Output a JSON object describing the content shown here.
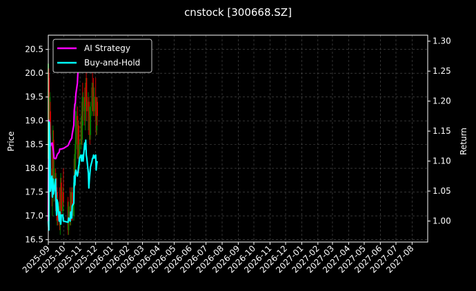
{
  "chart_data": {
    "type": "line",
    "title": "cnstock [300668.SZ]",
    "ylabel_left": "Price",
    "ylabel_right": "Return",
    "xlim": [
      "2025-09-01",
      "2027-08-31"
    ],
    "ylim_left": [
      16.45,
      20.8
    ],
    "ylim_right": [
      0.965,
      1.31
    ],
    "yticks_left": [
      16.5,
      17.0,
      17.5,
      18.0,
      18.5,
      19.0,
      19.5,
      20.0,
      20.5
    ],
    "yticks_right": [
      1.0,
      1.05,
      1.1,
      1.15,
      1.2,
      1.25,
      1.3
    ],
    "xticks": [
      "2025-09",
      "2025-10",
      "2025-11",
      "2025-12",
      "2026-01",
      "2026-02",
      "2026-03",
      "2026-04",
      "2026-05",
      "2026-06",
      "2026-07",
      "2026-08",
      "2026-09",
      "2026-10",
      "2026-11",
      "2026-12",
      "2027-01",
      "2027-02",
      "2027-03",
      "2027-04",
      "2027-05",
      "2027-06",
      "2027-07",
      "2027-08"
    ],
    "grid": true,
    "legend_position": "top-left",
    "colors": {
      "background": "#000000",
      "ai_strategy": "#ff00ff",
      "buy_and_hold": "#00ffff",
      "candle_up": "#008000",
      "candle_down": "#d00000",
      "grid": "#555555"
    },
    "candles": [
      {
        "date": "2025-09-01",
        "open": 18.2,
        "high": 20.4,
        "low": 18.0,
        "close": 20.2
      },
      {
        "date": "2025-09-02",
        "open": 20.0,
        "high": 20.1,
        "low": 18.8,
        "close": 19.0
      },
      {
        "date": "2025-09-03",
        "open": 19.3,
        "high": 19.9,
        "low": 18.4,
        "close": 18.5
      },
      {
        "date": "2025-09-04",
        "open": 18.6,
        "high": 19.6,
        "low": 17.5,
        "close": 19.5
      },
      {
        "date": "2025-09-05",
        "open": 19.2,
        "high": 19.4,
        "low": 17.9,
        "close": 18.0
      },
      {
        "date": "2025-09-08",
        "open": 18.0,
        "high": 18.5,
        "low": 17.2,
        "close": 17.4
      },
      {
        "date": "2025-09-09",
        "open": 17.5,
        "high": 18.0,
        "low": 17.0,
        "close": 17.8
      },
      {
        "date": "2025-09-10",
        "open": 17.8,
        "high": 18.9,
        "low": 17.5,
        "close": 18.8
      },
      {
        "date": "2025-09-11",
        "open": 18.6,
        "high": 18.8,
        "low": 17.6,
        "close": 17.8
      },
      {
        "date": "2025-09-12",
        "open": 17.8,
        "high": 18.2,
        "low": 17.3,
        "close": 18.0
      },
      {
        "date": "2025-09-15",
        "open": 17.9,
        "high": 18.0,
        "low": 17.1,
        "close": 17.3
      },
      {
        "date": "2025-09-16",
        "open": 17.3,
        "high": 17.9,
        "low": 17.0,
        "close": 17.7
      },
      {
        "date": "2025-09-17",
        "open": 17.6,
        "high": 17.8,
        "low": 16.9,
        "close": 17.0
      },
      {
        "date": "2025-09-18",
        "open": 17.0,
        "high": 17.4,
        "low": 16.8,
        "close": 17.3
      },
      {
        "date": "2025-09-19",
        "open": 17.2,
        "high": 17.5,
        "low": 16.8,
        "close": 16.9
      },
      {
        "date": "2025-09-22",
        "open": 16.9,
        "high": 17.3,
        "low": 16.8,
        "close": 17.2
      },
      {
        "date": "2025-09-23",
        "open": 17.1,
        "high": 17.6,
        "low": 16.7,
        "close": 16.8
      },
      {
        "date": "2025-09-24",
        "open": 16.8,
        "high": 17.2,
        "low": 16.6,
        "close": 17.1
      },
      {
        "date": "2025-09-25",
        "open": 17.1,
        "high": 17.9,
        "low": 17.0,
        "close": 17.8
      },
      {
        "date": "2025-09-26",
        "open": 17.7,
        "high": 17.8,
        "low": 17.0,
        "close": 17.1
      },
      {
        "date": "2025-09-29",
        "open": 17.1,
        "high": 17.6,
        "low": 16.9,
        "close": 17.5
      },
      {
        "date": "2025-09-30",
        "open": 17.5,
        "high": 18.0,
        "low": 17.2,
        "close": 17.3
      },
      {
        "date": "2025-10-09",
        "open": 17.3,
        "high": 17.4,
        "low": 16.6,
        "close": 16.7
      },
      {
        "date": "2025-10-10",
        "open": 16.7,
        "high": 17.3,
        "low": 16.6,
        "close": 17.2
      },
      {
        "date": "2025-10-13",
        "open": 17.2,
        "high": 17.6,
        "low": 16.8,
        "close": 16.9
      },
      {
        "date": "2025-10-14",
        "open": 16.9,
        "high": 17.5,
        "low": 16.8,
        "close": 17.3
      },
      {
        "date": "2025-10-15",
        "open": 17.3,
        "high": 17.5,
        "low": 16.9,
        "close": 17.1
      },
      {
        "date": "2025-10-16",
        "open": 17.1,
        "high": 17.6,
        "low": 17.0,
        "close": 17.5
      },
      {
        "date": "2025-10-17",
        "open": 17.5,
        "high": 17.6,
        "low": 16.9,
        "close": 17.0
      },
      {
        "date": "2025-10-20",
        "open": 17.0,
        "high": 17.8,
        "low": 16.9,
        "close": 17.7
      },
      {
        "date": "2025-10-21",
        "open": 17.7,
        "high": 18.3,
        "low": 17.5,
        "close": 18.2
      },
      {
        "date": "2025-10-22",
        "open": 18.2,
        "high": 18.4,
        "low": 17.6,
        "close": 17.8
      },
      {
        "date": "2025-10-23",
        "open": 17.8,
        "high": 18.6,
        "low": 17.7,
        "close": 18.5
      },
      {
        "date": "2025-10-24",
        "open": 18.5,
        "high": 19.4,
        "low": 18.3,
        "close": 19.2
      },
      {
        "date": "2025-10-27",
        "open": 19.1,
        "high": 19.3,
        "low": 18.2,
        "close": 18.4
      },
      {
        "date": "2025-10-28",
        "open": 18.4,
        "high": 19.0,
        "low": 18.2,
        "close": 18.9
      },
      {
        "date": "2025-10-29",
        "open": 18.9,
        "high": 19.0,
        "low": 18.3,
        "close": 18.5
      },
      {
        "date": "2025-10-30",
        "open": 18.5,
        "high": 18.9,
        "low": 17.9,
        "close": 18.1
      },
      {
        "date": "2025-10-31",
        "open": 18.1,
        "high": 18.6,
        "low": 18.0,
        "close": 18.5
      },
      {
        "date": "2025-11-03",
        "open": 18.5,
        "high": 19.1,
        "low": 18.4,
        "close": 19.0
      },
      {
        "date": "2025-11-04",
        "open": 19.0,
        "high": 19.2,
        "low": 18.5,
        "close": 18.6
      },
      {
        "date": "2025-11-05",
        "open": 18.6,
        "high": 19.5,
        "low": 18.5,
        "close": 19.4
      },
      {
        "date": "2025-11-06",
        "open": 19.4,
        "high": 19.8,
        "low": 19.0,
        "close": 19.2
      },
      {
        "date": "2025-11-07",
        "open": 19.2,
        "high": 19.6,
        "low": 18.9,
        "close": 19.5
      },
      {
        "date": "2025-11-10",
        "open": 19.5,
        "high": 19.7,
        "low": 18.9,
        "close": 19.0
      },
      {
        "date": "2025-11-11",
        "open": 19.0,
        "high": 19.4,
        "low": 18.8,
        "close": 19.3
      },
      {
        "date": "2025-11-12",
        "open": 19.3,
        "high": 19.9,
        "low": 19.2,
        "close": 19.8
      },
      {
        "date": "2025-11-13",
        "open": 19.8,
        "high": 20.3,
        "low": 19.4,
        "close": 19.5
      },
      {
        "date": "2025-11-14",
        "open": 19.5,
        "high": 19.9,
        "low": 19.0,
        "close": 19.2
      },
      {
        "date": "2025-11-17",
        "open": 19.2,
        "high": 19.6,
        "low": 18.8,
        "close": 19.4
      },
      {
        "date": "2025-11-18",
        "open": 19.4,
        "high": 19.5,
        "low": 18.7,
        "close": 18.9
      },
      {
        "date": "2025-11-19",
        "open": 18.9,
        "high": 19.3,
        "low": 18.6,
        "close": 19.1
      },
      {
        "date": "2025-11-20",
        "open": 19.1,
        "high": 19.2,
        "low": 18.5,
        "close": 18.7
      },
      {
        "date": "2025-11-21",
        "open": 18.7,
        "high": 19.4,
        "low": 18.6,
        "close": 19.3
      },
      {
        "date": "2025-11-24",
        "open": 19.3,
        "high": 19.8,
        "low": 19.1,
        "close": 19.7
      },
      {
        "date": "2025-11-25",
        "open": 19.7,
        "high": 20.1,
        "low": 19.2,
        "close": 19.4
      },
      {
        "date": "2025-11-26",
        "open": 19.4,
        "high": 19.8,
        "low": 19.2,
        "close": 19.6
      },
      {
        "date": "2025-11-27",
        "open": 19.6,
        "high": 19.9,
        "low": 19.1,
        "close": 19.2
      },
      {
        "date": "2025-11-28",
        "open": 19.2,
        "high": 19.7,
        "low": 19.1,
        "close": 19.5
      },
      {
        "date": "2025-12-01",
        "open": 19.5,
        "high": 19.9,
        "low": 19.0,
        "close": 19.1
      },
      {
        "date": "2025-12-02",
        "open": 19.1,
        "high": 19.3,
        "low": 18.7,
        "close": 18.8
      },
      {
        "date": "2025-12-03",
        "open": 18.8,
        "high": 19.5,
        "low": 18.7,
        "close": 19.4
      },
      {
        "date": "2025-12-04",
        "open": 19.4,
        "high": 19.5,
        "low": 18.9,
        "close": 19.1
      }
    ],
    "series": [
      {
        "name": "AI Strategy",
        "axis": "right",
        "points": [
          [
            "2025-09-01",
            1.0
          ],
          [
            "2025-09-02",
            1.168
          ],
          [
            "2025-09-03",
            1.16
          ],
          [
            "2025-09-04",
            1.135
          ],
          [
            "2025-09-05",
            1.125
          ],
          [
            "2025-09-08",
            1.13
          ],
          [
            "2025-09-09",
            1.13
          ],
          [
            "2025-09-10",
            1.122
          ],
          [
            "2025-09-11",
            1.116
          ],
          [
            "2025-09-12",
            1.105
          ],
          [
            "2025-09-15",
            1.104
          ],
          [
            "2025-09-16",
            1.105
          ],
          [
            "2025-09-17",
            1.108
          ],
          [
            "2025-09-18",
            1.11
          ],
          [
            "2025-09-19",
            1.112
          ],
          [
            "2025-09-22",
            1.115
          ],
          [
            "2025-09-23",
            1.12
          ],
          [
            "2025-09-24",
            1.12
          ],
          [
            "2025-09-25",
            1.12
          ],
          [
            "2025-09-26",
            1.12
          ],
          [
            "2025-09-29",
            1.121
          ],
          [
            "2025-09-30",
            1.121
          ],
          [
            "2025-10-09",
            1.126
          ],
          [
            "2025-10-10",
            1.128
          ],
          [
            "2025-10-13",
            1.134
          ],
          [
            "2025-10-14",
            1.135
          ],
          [
            "2025-10-15",
            1.137
          ],
          [
            "2025-10-16",
            1.138
          ],
          [
            "2025-10-17",
            1.145
          ],
          [
            "2025-10-20",
            1.16
          ],
          [
            "2025-10-21",
            1.185
          ],
          [
            "2025-10-22",
            1.195
          ],
          [
            "2025-10-23",
            1.197
          ],
          [
            "2025-10-24",
            1.212
          ],
          [
            "2025-10-27",
            1.23
          ],
          [
            "2025-10-28",
            1.25
          ],
          [
            "2025-10-29",
            1.26
          ],
          [
            "2025-10-30",
            1.262
          ]
        ]
      },
      {
        "name": "Buy-and-Hold",
        "axis": "right",
        "points": [
          [
            "2025-09-01",
            1.0
          ],
          [
            "2025-09-02",
            0.985
          ],
          [
            "2025-09-03",
            1.165
          ],
          [
            "2025-09-04",
            1.13
          ],
          [
            "2025-09-05",
            1.05
          ],
          [
            "2025-09-08",
            1.075
          ],
          [
            "2025-09-09",
            1.04
          ],
          [
            "2025-09-10",
            1.07
          ],
          [
            "2025-09-11",
            1.045
          ],
          [
            "2025-09-12",
            1.05
          ],
          [
            "2025-09-15",
            1.07
          ],
          [
            "2025-09-16",
            1.03
          ],
          [
            "2025-09-17",
            1.01
          ],
          [
            "2025-09-18",
            1.035
          ],
          [
            "2025-09-19",
            1.03
          ],
          [
            "2025-09-22",
            1.0
          ],
          [
            "2025-09-23",
            1.015
          ],
          [
            "2025-09-24",
            1.0
          ],
          [
            "2025-09-25",
            0.995
          ],
          [
            "2025-09-26",
            1.01
          ],
          [
            "2025-09-29",
            1.01
          ],
          [
            "2025-09-30",
            1.0
          ],
          [
            "2025-10-09",
            0.998
          ],
          [
            "2025-10-10",
            1.005
          ],
          [
            "2025-10-13",
            1.0
          ],
          [
            "2025-10-14",
            1.015
          ],
          [
            "2025-10-15",
            1.01
          ],
          [
            "2025-10-16",
            1.005
          ],
          [
            "2025-10-17",
            1.025
          ],
          [
            "2025-10-20",
            1.03
          ],
          [
            "2025-10-21",
            1.075
          ],
          [
            "2025-10-22",
            1.06
          ],
          [
            "2025-10-23",
            1.08
          ],
          [
            "2025-10-24",
            1.085
          ],
          [
            "2025-10-27",
            1.075
          ],
          [
            "2025-10-28",
            1.08
          ],
          [
            "2025-10-29",
            1.09
          ],
          [
            "2025-10-30",
            1.095
          ],
          [
            "2025-10-31",
            1.105
          ],
          [
            "2025-11-03",
            1.11
          ],
          [
            "2025-11-04",
            1.1
          ],
          [
            "2025-11-05",
            1.105
          ],
          [
            "2025-11-06",
            1.11
          ],
          [
            "2025-11-07",
            1.1
          ],
          [
            "2025-11-10",
            1.13
          ],
          [
            "2025-11-11",
            1.12
          ],
          [
            "2025-11-12",
            1.135
          ],
          [
            "2025-11-13",
            1.11
          ],
          [
            "2025-11-14",
            1.105
          ],
          [
            "2025-11-17",
            1.08
          ],
          [
            "2025-11-18",
            1.055
          ],
          [
            "2025-11-19",
            1.07
          ],
          [
            "2025-11-20",
            1.08
          ],
          [
            "2025-11-21",
            1.09
          ],
          [
            "2025-11-24",
            1.1
          ],
          [
            "2025-11-25",
            1.105
          ],
          [
            "2025-11-26",
            1.105
          ],
          [
            "2025-11-27",
            1.11
          ],
          [
            "2025-11-28",
            1.105
          ],
          [
            "2025-12-01",
            1.11
          ],
          [
            "2025-12-02",
            1.085
          ],
          [
            "2025-12-03",
            1.095
          ],
          [
            "2025-12-04",
            1.1
          ]
        ]
      }
    ]
  }
}
